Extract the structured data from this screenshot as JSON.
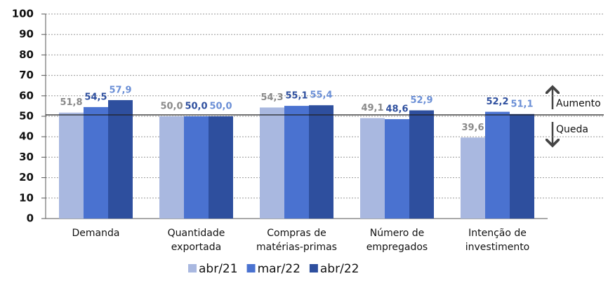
{
  "chart_data": {
    "type": "bar",
    "categories": [
      "Demanda",
      "Quantidade\nexportada",
      "Compras de\nmatérias-primas",
      "Número de\nempregados",
      "Intenção de\ninvestimento"
    ],
    "series": [
      {
        "name": "abr/21",
        "color": "#a9b8e0",
        "label_color": "#8a8a8a",
        "values": [
          51.8,
          50.0,
          54.3,
          49.1,
          39.6
        ],
        "value_labels": [
          "51,8",
          "50,0",
          "54,3",
          "49,1",
          "39,6"
        ]
      },
      {
        "name": "mar/22",
        "color": "#4a72d0",
        "label_color": "#2e4f9e",
        "values": [
          54.5,
          50.0,
          55.1,
          48.6,
          52.2
        ],
        "value_labels": [
          "54,5",
          "50,0",
          "55,1",
          "48,6",
          "52,2"
        ]
      },
      {
        "name": "abr/22",
        "color": "#2e4f9e",
        "label_color": "#6b8fd6",
        "values": [
          57.9,
          50.0,
          55.4,
          52.9,
          51.1
        ],
        "value_labels": [
          "57,9",
          "50,0",
          "55,4",
          "52,9",
          "51,1"
        ]
      }
    ],
    "ylim": [
      0,
      100
    ],
    "yticks": [
      0,
      10,
      20,
      30,
      40,
      50,
      60,
      70,
      80,
      90,
      100
    ],
    "grid": true,
    "reference_line": 50,
    "annotations": [
      "Aumento",
      "Queda"
    ],
    "legend": "bottom"
  }
}
